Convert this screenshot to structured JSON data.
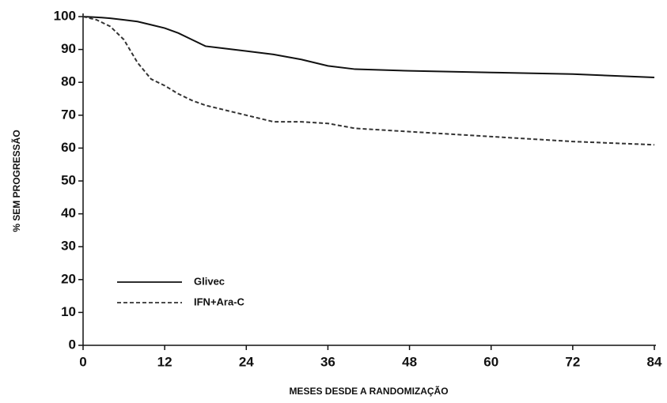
{
  "chart_data": {
    "type": "line",
    "xlabel": "MESES DESDE A RANDOMIZAÇÃO",
    "ylabel": "% SEM PROGRESSÃO",
    "x": [
      0,
      2,
      4,
      6,
      8,
      10,
      12,
      14,
      16,
      18,
      20,
      24,
      28,
      32,
      36,
      40,
      48,
      60,
      72,
      84
    ],
    "series": [
      {
        "name": "Glivec",
        "color": "#111111",
        "dash": false,
        "values": [
          100,
          99.8,
          99.5,
          99,
          98.5,
          97.5,
          96.5,
          95,
          93,
          91,
          90.5,
          89.5,
          88.5,
          87,
          85,
          84,
          83.5,
          83,
          82.5,
          81.5
        ]
      },
      {
        "name": "IFN+Ara-C",
        "color": "#333333",
        "dash": true,
        "values": [
          100,
          99,
          97,
          93,
          86,
          81,
          79,
          76.5,
          74.5,
          73,
          72,
          70,
          68,
          68,
          67.5,
          66,
          65,
          63.5,
          62,
          61
        ]
      }
    ],
    "xlim": [
      0,
      84
    ],
    "xticks": [
      0,
      12,
      24,
      36,
      48,
      60,
      72,
      84
    ],
    "ylim": [
      0,
      100
    ],
    "yticks": [
      0,
      10,
      20,
      30,
      40,
      50,
      60,
      70,
      80,
      90,
      100
    ]
  }
}
